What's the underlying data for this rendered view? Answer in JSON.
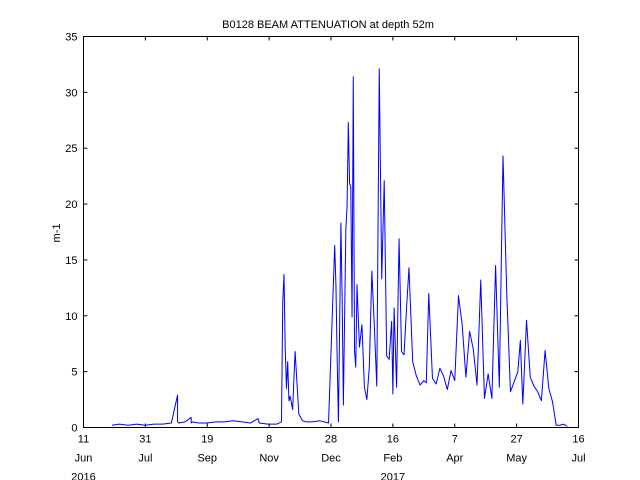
{
  "chart_data": {
    "type": "line",
    "title": "B0128 BEAM ATTENUATION at depth 52m",
    "ylabel": "m-1",
    "xlabel": "",
    "ylim": [
      0,
      35
    ],
    "yticks": [
      "0",
      "5",
      "10",
      "15",
      "20",
      "25",
      "30",
      "35"
    ],
    "xlim": [
      "2016-06-11",
      "2017-07-16"
    ],
    "xticks": [
      {
        "date": "2016-06-11",
        "day": "11",
        "month": "Jun",
        "year": "2016"
      },
      {
        "date": "2016-07-31",
        "day": "31",
        "month": "Jul",
        "year": ""
      },
      {
        "date": "2016-09-19",
        "day": "19",
        "month": "Sep",
        "year": ""
      },
      {
        "date": "2016-11-08",
        "day": "8",
        "month": "Nov",
        "year": ""
      },
      {
        "date": "2016-12-28",
        "day": "28",
        "month": "Dec",
        "year": ""
      },
      {
        "date": "2017-02-16",
        "day": "16",
        "month": "Feb",
        "year": "2017"
      },
      {
        "date": "2017-04-07",
        "day": "7",
        "month": "Apr",
        "year": ""
      },
      {
        "date": "2017-05-27",
        "day": "27",
        "month": "May",
        "year": ""
      },
      {
        "date": "2017-07-16",
        "day": "16",
        "month": "Jul",
        "year": ""
      }
    ],
    "grid": false,
    "line_color": "#0000ff",
    "series": [
      {
        "x": [
          "2016-07-04",
          "2016-07-10",
          "2016-07-17",
          "2016-07-24",
          "2016-07-31",
          "2016-08-07",
          "2016-08-14",
          "2016-08-21",
          "2016-08-26",
          "2016-08-26",
          "2016-08-27",
          "2016-09-01",
          "2016-09-06",
          "2016-09-06",
          "2016-09-07",
          "2016-09-12",
          "2016-09-19",
          "2016-09-26",
          "2016-10-03",
          "2016-10-10",
          "2016-10-17",
          "2016-10-24",
          "2016-10-30",
          "2016-10-31",
          "2016-11-07",
          "2016-11-14",
          "2016-11-18",
          "2016-11-19",
          "2016-11-20",
          "2016-11-21",
          "2016-11-22",
          "2016-11-23",
          "2016-11-24",
          "2016-11-25",
          "2016-11-27",
          "2016-11-29",
          "2016-12-02",
          "2016-12-05",
          "2016-12-08",
          "2016-12-13",
          "2016-12-19",
          "2016-12-26",
          "2016-12-31",
          "2017-01-01",
          "2017-01-02",
          "2017-01-03",
          "2017-01-05",
          "2017-01-06",
          "2017-01-07",
          "2017-01-09",
          "2017-01-10",
          "2017-01-11",
          "2017-01-12",
          "2017-01-13",
          "2017-01-14",
          "2017-01-15",
          "2017-01-16",
          "2017-01-17",
          "2017-01-18",
          "2017-01-20",
          "2017-01-22",
          "2017-01-24",
          "2017-01-26",
          "2017-01-28",
          "2017-01-30",
          "2017-02-01",
          "2017-02-03",
          "2017-02-05",
          "2017-02-07",
          "2017-02-09",
          "2017-02-11",
          "2017-02-13",
          "2017-02-15",
          "2017-02-16",
          "2017-02-17",
          "2017-02-19",
          "2017-02-21",
          "2017-02-23",
          "2017-02-25",
          "2017-02-27",
          "2017-03-01",
          "2017-03-04",
          "2017-03-07",
          "2017-03-10",
          "2017-03-13",
          "2017-03-15",
          "2017-03-17",
          "2017-03-20",
          "2017-03-23",
          "2017-03-26",
          "2017-03-29",
          "2017-04-01",
          "2017-04-04",
          "2017-04-07",
          "2017-04-10",
          "2017-04-13",
          "2017-04-16",
          "2017-04-19",
          "2017-04-22",
          "2017-04-25",
          "2017-04-28",
          "2017-05-01",
          "2017-05-04",
          "2017-05-07",
          "2017-05-10",
          "2017-05-13",
          "2017-05-16",
          "2017-05-19",
          "2017-05-22",
          "2017-05-25",
          "2017-05-28",
          "2017-05-30",
          "2017-06-01",
          "2017-06-04",
          "2017-06-07",
          "2017-06-10",
          "2017-06-13",
          "2017-06-16",
          "2017-06-19",
          "2017-06-22",
          "2017-06-25",
          "2017-06-28",
          "2017-07-01",
          "2017-07-04",
          "2017-07-07"
        ],
        "y": [
          0.2,
          0.3,
          0.2,
          0.3,
          0.2,
          0.3,
          0.3,
          0.4,
          2.9,
          0.5,
          0.4,
          0.5,
          0.9,
          0.4,
          0.5,
          0.4,
          0.4,
          0.5,
          0.5,
          0.6,
          0.5,
          0.4,
          0.8,
          0.4,
          0.3,
          0.3,
          0.5,
          11.2,
          13.7,
          7.1,
          3.5,
          5.9,
          2.4,
          2.8,
          1.6,
          6.8,
          1.2,
          0.6,
          0.5,
          0.5,
          0.6,
          0.4,
          16.3,
          12.7,
          6.0,
          0.5,
          18.3,
          11.6,
          2.0,
          17.8,
          19.8,
          27.3,
          21.9,
          21.5,
          9.9,
          31.4,
          6.9,
          5.4,
          12.8,
          7.2,
          9.2,
          3.6,
          2.5,
          5.5,
          14.0,
          9.1,
          3.7,
          32.1,
          13.3,
          22.1,
          6.4,
          6.1,
          9.5,
          3.0,
          10.7,
          3.6,
          16.9,
          6.8,
          6.5,
          10.6,
          14.3,
          5.9,
          4.6,
          3.8,
          4.2,
          4.0,
          12.0,
          4.4,
          3.9,
          5.3,
          4.6,
          3.4,
          5.1,
          4.2,
          11.8,
          9.2,
          4.5,
          8.6,
          7.0,
          3.8,
          13.2,
          2.6,
          4.8,
          2.6,
          14.5,
          3.6,
          24.3,
          12.1,
          3.2,
          4.1,
          5.0,
          7.8,
          2.1,
          9.6,
          4.5,
          3.7,
          3.2,
          2.4,
          6.9,
          3.5,
          2.3,
          0.2,
          0.2,
          0.3,
          0.1
        ]
      }
    ]
  }
}
